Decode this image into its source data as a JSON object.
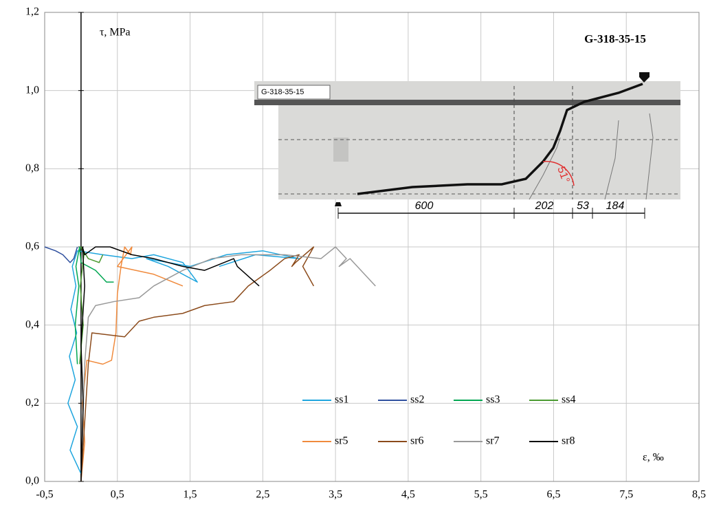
{
  "chart_data": {
    "type": "line",
    "y_label": "τ, MPa",
    "x_label": "ε, ‰",
    "annotation": "G-318-35-15",
    "photo": {
      "label": "G-318-35-15",
      "dimensions": [
        "600",
        "202",
        "53",
        "184"
      ],
      "angle": "51°"
    },
    "xlim": [
      -0.5,
      8.5
    ],
    "xticks": [
      {
        "value": -0.5,
        "label": "-0,5"
      },
      {
        "value": 0.5,
        "label": "0,5"
      },
      {
        "value": 1.5,
        "label": "1,5"
      },
      {
        "value": 2.5,
        "label": "2,5"
      },
      {
        "value": 3.5,
        "label": "3,5"
      },
      {
        "value": 4.5,
        "label": "4,5"
      },
      {
        "value": 5.5,
        "label": "5,5"
      },
      {
        "value": 6.5,
        "label": "6,5"
      },
      {
        "value": 7.5,
        "label": "7,5"
      },
      {
        "value": 8.5,
        "label": "8,5"
      }
    ],
    "ylim": [
      0,
      1.2
    ],
    "yticks": [
      {
        "value": 0,
        "label": "0,0"
      },
      {
        "value": 0.2,
        "label": "0,2"
      },
      {
        "value": 0.4,
        "label": "0,4"
      },
      {
        "value": 0.6,
        "label": "0,6"
      },
      {
        "value": 0.8,
        "label": "0,8"
      },
      {
        "value": 1.0,
        "label": "1,0"
      },
      {
        "value": 1.2,
        "label": "1,2"
      }
    ],
    "grid": true,
    "series": [
      {
        "name": "ss1",
        "color": "#1ea5de",
        "x": [
          0,
          -0.15,
          -0.05,
          -0.18,
          -0.08,
          -0.16,
          -0.06,
          -0.14,
          -0.07,
          -0.12,
          -0.05,
          0.3,
          0.7,
          1.0,
          1.4,
          1.6,
          1.2,
          0.9,
          1.5,
          2.0,
          2.5,
          3.0,
          2.4,
          1.9
        ],
        "values": [
          0.02,
          0.08,
          0.14,
          0.2,
          0.26,
          0.32,
          0.38,
          0.44,
          0.5,
          0.55,
          0.59,
          0.58,
          0.57,
          0.58,
          0.56,
          0.51,
          0.55,
          0.57,
          0.55,
          0.58,
          0.59,
          0.57,
          0.58,
          0.55
        ]
      },
      {
        "name": "ss2",
        "color": "#2e4f9e",
        "x": [
          -0.5,
          -0.35,
          -0.25,
          -0.15,
          -0.1,
          -0.05
        ],
        "values": [
          0.6,
          0.59,
          0.58,
          0.56,
          0.57,
          0.6
        ]
      },
      {
        "name": "ss3",
        "color": "#00a651",
        "x": [
          -0.05,
          -0.08,
          -0.03,
          -0.07,
          -0.02,
          0.0,
          0.2,
          0.35,
          0.45
        ],
        "values": [
          0.3,
          0.4,
          0.5,
          0.55,
          0.6,
          0.56,
          0.54,
          0.51,
          0.51
        ]
      },
      {
        "name": "ss4",
        "color": "#4a9a30",
        "x": [
          -0.02,
          0.03,
          -0.01,
          0.04,
          0.0,
          0.1,
          0.25,
          0.3
        ],
        "values": [
          0.3,
          0.4,
          0.5,
          0.58,
          0.6,
          0.57,
          0.56,
          0.58
        ]
      },
      {
        "name": "sr5",
        "color": "#f08a3c",
        "x": [
          0,
          0.05,
          0.02,
          0.08,
          0.3,
          0.42,
          0.48,
          0.5,
          0.55,
          0.6,
          0.68,
          0.7,
          0.5,
          1.0,
          1.4
        ],
        "values": [
          0,
          0.1,
          0.2,
          0.31,
          0.3,
          0.31,
          0.38,
          0.48,
          0.55,
          0.6,
          0.58,
          0.6,
          0.55,
          0.53,
          0.5
        ]
      },
      {
        "name": "sr6",
        "color": "#8b4a1a",
        "x": [
          0,
          0.05,
          0.1,
          0.15,
          0.6,
          0.8,
          1.0,
          1.4,
          1.7,
          2.1,
          2.3,
          2.6,
          2.8,
          3.0,
          2.9,
          2.95,
          3.2,
          3.05,
          3.2
        ],
        "values": [
          0,
          0.15,
          0.3,
          0.38,
          0.37,
          0.41,
          0.42,
          0.43,
          0.45,
          0.46,
          0.5,
          0.54,
          0.57,
          0.58,
          0.55,
          0.56,
          0.6,
          0.55,
          0.5
        ]
      },
      {
        "name": "sr7",
        "color": "#999999",
        "x": [
          0,
          0.05,
          0.1,
          0.2,
          0.45,
          0.8,
          1.0,
          1.4,
          1.8,
          2.2,
          2.8,
          3.3,
          3.5,
          3.65,
          3.55,
          3.7,
          4.05
        ],
        "values": [
          0,
          0.3,
          0.42,
          0.45,
          0.46,
          0.47,
          0.5,
          0.54,
          0.57,
          0.58,
          0.58,
          0.57,
          0.6,
          0.57,
          0.55,
          0.57,
          0.5
        ]
      },
      {
        "name": "sr8",
        "color": "#000000",
        "x": [
          0,
          0.03,
          0.0,
          0.05,
          0.02,
          0.05,
          0.2,
          0.4,
          0.7,
          1.0,
          1.4,
          1.7,
          2.1,
          2.15,
          2.45
        ],
        "values": [
          0,
          0.2,
          0.35,
          0.5,
          0.6,
          0.58,
          0.6,
          0.6,
          0.58,
          0.57,
          0.55,
          0.54,
          0.57,
          0.55,
          0.5
        ]
      }
    ]
  }
}
